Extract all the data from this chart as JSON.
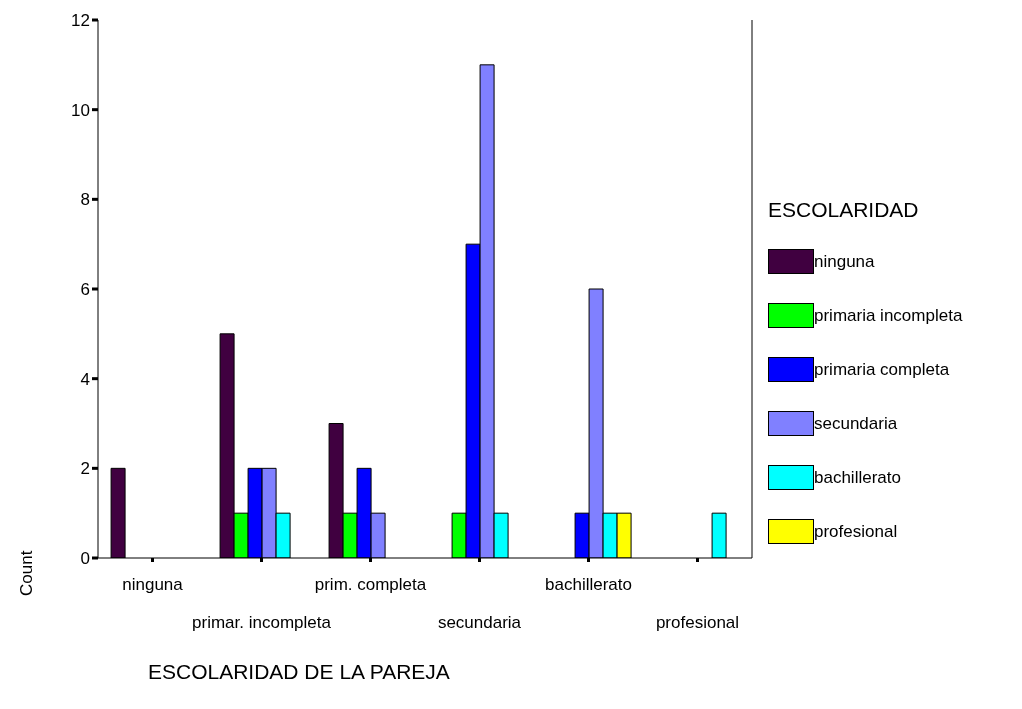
{
  "chart_data": {
    "type": "bar",
    "xlabel": "ESCOLARIDAD DE LA PAREJA",
    "ylabel": "Count",
    "legend_title": "ESCOLARIDAD",
    "categories": [
      "ninguna",
      "primar. incompleta",
      "prim. completa",
      "secundaria",
      "bachillerato",
      "profesional"
    ],
    "series": [
      {
        "name": "ninguna",
        "color": "#400040",
        "values": [
          2,
          5,
          3,
          null,
          null,
          null
        ]
      },
      {
        "name": "primaria incompleta",
        "color": "#00ff00",
        "values": [
          null,
          1,
          1,
          1,
          null,
          null
        ]
      },
      {
        "name": "primaria completa",
        "color": "#0000ff",
        "values": [
          null,
          2,
          2,
          7,
          1,
          null
        ]
      },
      {
        "name": "secundaria",
        "color": "#8080ff",
        "values": [
          null,
          2,
          1,
          11,
          6,
          null
        ]
      },
      {
        "name": "bachillerato",
        "color": "#00ffff",
        "values": [
          null,
          1,
          null,
          1,
          1,
          1
        ]
      },
      {
        "name": "profesional",
        "color": "#ffff00",
        "values": [
          null,
          null,
          null,
          null,
          1,
          null
        ]
      }
    ],
    "ylim": [
      0,
      12
    ],
    "yticks": [
      0,
      2,
      4,
      6,
      8,
      10,
      12
    ],
    "grid": false,
    "legend": "right"
  }
}
